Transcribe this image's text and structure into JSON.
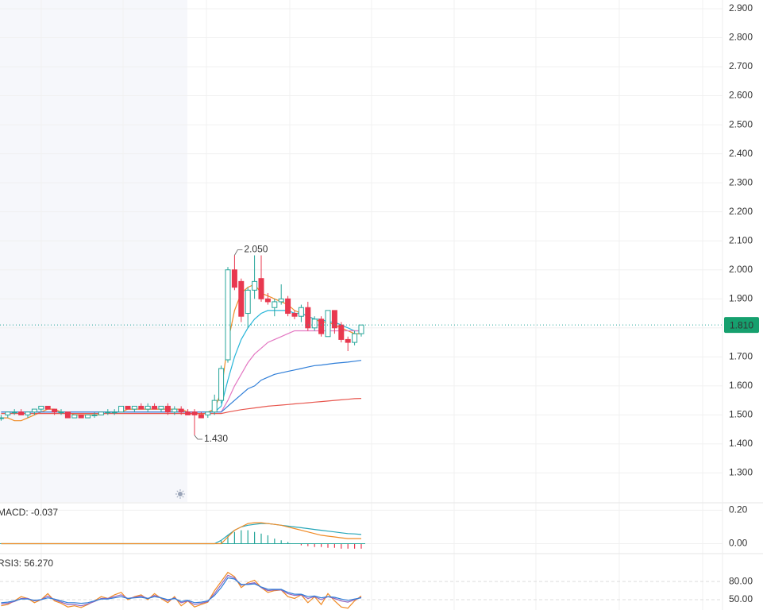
{
  "chart_data": [
    {
      "type": "candlestick",
      "up_color": "#26a69a",
      "down_color": "#e8384f",
      "open": [
        1.49,
        1.5,
        1.51,
        1.51,
        1.5,
        1.51,
        1.52,
        1.53,
        1.52,
        1.51,
        1.51,
        1.49,
        1.5,
        1.49,
        1.5,
        1.5,
        1.51,
        1.51,
        1.51,
        1.53,
        1.52,
        1.53,
        1.52,
        1.53,
        1.52,
        1.53,
        1.51,
        1.52,
        1.51,
        1.51,
        1.5,
        1.5,
        1.51,
        1.55,
        1.69,
        2.0,
        1.96,
        1.85,
        1.93,
        1.97,
        1.9,
        1.87,
        1.89,
        1.9,
        1.85,
        1.84,
        1.87,
        1.8,
        1.83,
        1.77,
        1.86,
        1.81,
        1.76,
        1.75,
        1.78
      ],
      "high": [
        1.5,
        1.51,
        1.52,
        1.52,
        1.51,
        1.52,
        1.53,
        1.53,
        1.52,
        1.52,
        1.51,
        1.5,
        1.5,
        1.5,
        1.51,
        1.51,
        1.52,
        1.52,
        1.53,
        1.53,
        1.53,
        1.54,
        1.54,
        1.54,
        1.53,
        1.54,
        1.53,
        1.53,
        1.52,
        1.52,
        1.51,
        1.51,
        1.57,
        1.67,
        2.01,
        2.05,
        1.97,
        1.94,
        2.05,
        2.05,
        1.92,
        1.9,
        1.95,
        1.91,
        1.86,
        1.88,
        1.89,
        1.84,
        1.84,
        1.86,
        1.86,
        1.82,
        1.77,
        1.79,
        1.81
      ],
      "low": [
        1.48,
        1.49,
        1.5,
        1.5,
        1.49,
        1.5,
        1.51,
        1.52,
        1.5,
        1.5,
        1.49,
        1.49,
        1.49,
        1.49,
        1.49,
        1.5,
        1.5,
        1.5,
        1.51,
        1.52,
        1.51,
        1.52,
        1.51,
        1.52,
        1.51,
        1.5,
        1.5,
        1.5,
        1.5,
        1.43,
        1.49,
        1.49,
        1.5,
        1.54,
        1.68,
        1.93,
        1.82,
        1.8,
        1.9,
        1.89,
        1.88,
        1.84,
        1.88,
        1.84,
        1.83,
        1.82,
        1.79,
        1.79,
        1.77,
        1.77,
        1.78,
        1.75,
        1.72,
        1.74,
        1.77
      ],
      "close": [
        1.49,
        1.51,
        1.51,
        1.5,
        1.51,
        1.52,
        1.53,
        1.52,
        1.51,
        1.51,
        1.49,
        1.5,
        1.49,
        1.5,
        1.5,
        1.51,
        1.51,
        1.51,
        1.53,
        1.52,
        1.53,
        1.52,
        1.53,
        1.52,
        1.53,
        1.51,
        1.52,
        1.51,
        1.5,
        1.5,
        1.49,
        1.51,
        1.55,
        1.66,
        2.0,
        1.94,
        1.84,
        1.93,
        1.96,
        1.9,
        1.89,
        1.89,
        1.9,
        1.85,
        1.84,
        1.87,
        1.8,
        1.83,
        1.78,
        1.86,
        1.8,
        1.76,
        1.75,
        1.78,
        1.81
      ],
      "lines": [
        {
          "color": "#f08a24",
          "values": [
            1.49,
            1.49,
            1.48,
            1.48,
            1.49,
            1.5,
            1.51,
            1.52,
            1.52,
            1.51,
            1.51,
            1.5,
            1.5,
            1.5,
            1.5,
            1.5,
            1.51,
            1.51,
            1.51,
            1.52,
            1.52,
            1.52,
            1.52,
            1.52,
            1.52,
            1.52,
            1.52,
            1.52,
            1.51,
            1.51,
            1.5,
            1.51,
            1.52,
            1.58,
            1.75,
            1.86,
            1.92,
            1.94,
            1.95,
            1.92,
            1.91,
            1.9,
            1.89,
            1.88,
            1.86,
            1.85,
            1.84,
            1.83,
            1.82,
            1.82,
            1.81,
            1.8,
            1.79,
            1.78,
            1.78
          ]
        },
        {
          "color": "#26b5d8",
          "values": [
            1.51,
            1.51,
            1.51,
            1.51,
            1.51,
            1.51,
            1.51,
            1.51,
            1.51,
            1.51,
            1.51,
            1.51,
            1.51,
            1.51,
            1.51,
            1.51,
            1.51,
            1.51,
            1.51,
            1.51,
            1.51,
            1.51,
            1.51,
            1.51,
            1.51,
            1.51,
            1.51,
            1.51,
            1.51,
            1.51,
            1.51,
            1.51,
            1.51,
            1.53,
            1.62,
            1.7,
            1.76,
            1.8,
            1.83,
            1.85,
            1.86,
            1.86,
            1.86,
            1.86,
            1.85,
            1.85,
            1.84,
            1.83,
            1.83,
            1.82,
            1.82,
            1.81,
            1.8,
            1.79,
            1.79
          ]
        },
        {
          "color": "#e377c2",
          "values": [
            1.51,
            1.51,
            1.51,
            1.51,
            1.51,
            1.51,
            1.51,
            1.51,
            1.51,
            1.51,
            1.51,
            1.51,
            1.51,
            1.51,
            1.51,
            1.51,
            1.51,
            1.51,
            1.51,
            1.51,
            1.51,
            1.51,
            1.51,
            1.51,
            1.51,
            1.51,
            1.51,
            1.51,
            1.51,
            1.51,
            1.51,
            1.51,
            1.51,
            1.51,
            1.55,
            1.6,
            1.64,
            1.68,
            1.71,
            1.73,
            1.75,
            1.76,
            1.77,
            1.78,
            1.79,
            1.79,
            1.79,
            1.79,
            1.79,
            1.79,
            1.79,
            1.79,
            1.79,
            1.79,
            1.79
          ]
        },
        {
          "color": "#2f7ed8",
          "values": [
            1.51,
            1.51,
            1.51,
            1.51,
            1.51,
            1.51,
            1.51,
            1.51,
            1.51,
            1.51,
            1.51,
            1.51,
            1.51,
            1.51,
            1.51,
            1.51,
            1.51,
            1.51,
            1.51,
            1.51,
            1.51,
            1.51,
            1.51,
            1.51,
            1.51,
            1.51,
            1.51,
            1.51,
            1.51,
            1.51,
            1.51,
            1.51,
            1.51,
            1.51,
            1.53,
            1.55,
            1.57,
            1.59,
            1.6,
            1.62,
            1.63,
            1.64,
            1.645,
            1.65,
            1.655,
            1.66,
            1.665,
            1.67,
            1.672,
            1.675,
            1.678,
            1.68,
            1.682,
            1.685,
            1.688
          ]
        },
        {
          "color": "#e8574f",
          "values": [
            1.505,
            1.505,
            1.505,
            1.505,
            1.505,
            1.505,
            1.505,
            1.505,
            1.505,
            1.505,
            1.505,
            1.505,
            1.505,
            1.505,
            1.505,
            1.505,
            1.505,
            1.505,
            1.505,
            1.505,
            1.505,
            1.505,
            1.505,
            1.505,
            1.505,
            1.505,
            1.505,
            1.505,
            1.505,
            1.505,
            1.505,
            1.505,
            1.505,
            1.505,
            1.51,
            1.514,
            1.518,
            1.521,
            1.524,
            1.527,
            1.53,
            1.532,
            1.534,
            1.536,
            1.538,
            1.54,
            1.542,
            1.544,
            1.546,
            1.548,
            1.55,
            1.552,
            1.554,
            1.556,
            1.557
          ]
        }
      ],
      "annotations": [
        {
          "value": 2.05,
          "label": "2.050"
        },
        {
          "value": 1.43,
          "label": "1.430"
        }
      ],
      "last_price": {
        "value": 1.81,
        "label": "1.810"
      },
      "ylim": [
        1.2,
        2.93
      ],
      "yticks": [
        {
          "value": 1.3,
          "label": "1.300"
        },
        {
          "value": 1.4,
          "label": "1.400"
        },
        {
          "value": 1.5,
          "label": "1.500"
        },
        {
          "value": 1.6,
          "label": "1.600"
        },
        {
          "value": 1.7,
          "label": "1.700"
        },
        {
          "value": 1.8,
          "label": "1.800"
        },
        {
          "value": 1.9,
          "label": "1.900"
        },
        {
          "value": 2.0,
          "label": "2.000"
        },
        {
          "value": 2.1,
          "label": "2.100"
        },
        {
          "value": 2.2,
          "label": "2.200"
        },
        {
          "value": 2.3,
          "label": "2.300"
        },
        {
          "value": 2.4,
          "label": "2.400"
        },
        {
          "value": 2.5,
          "label": "2.500"
        },
        {
          "value": 2.6,
          "label": "2.600"
        },
        {
          "value": 2.7,
          "label": "2.700"
        },
        {
          "value": 2.8,
          "label": "2.800"
        },
        {
          "value": 2.9,
          "label": "2.900"
        }
      ],
      "grid": true
    },
    {
      "type": "macd",
      "title": "MACD: -0.037",
      "title_color": "#d354c4",
      "up_color": "#26a69a",
      "down_color": "#e8384f",
      "histogram": [
        0,
        0,
        0,
        0,
        0,
        0,
        0,
        0,
        0,
        0,
        0,
        0,
        0,
        0,
        0,
        0,
        0,
        0,
        0,
        0,
        0,
        0,
        0,
        0,
        0,
        0,
        0,
        0,
        0,
        0,
        0,
        0,
        0,
        0.02,
        0.05,
        0.07,
        0.08,
        0.08,
        0.07,
        0.06,
        0.05,
        0.03,
        0.02,
        0.01,
        0,
        -0.01,
        -0.015,
        -0.02,
        -0.02,
        -0.025,
        -0.025,
        -0.03,
        -0.03,
        -0.03,
        -0.03
      ],
      "lines": [
        {
          "color": "#26a6b8",
          "values": [
            0,
            0,
            0,
            0,
            0,
            0,
            0,
            0,
            0,
            0,
            0,
            0,
            0,
            0,
            0,
            0,
            0,
            0,
            0,
            0,
            0,
            0,
            0,
            0,
            0,
            0,
            0,
            0,
            0,
            0,
            0,
            0,
            0,
            0.02,
            0.05,
            0.08,
            0.1,
            0.11,
            0.115,
            0.12,
            0.12,
            0.115,
            0.11,
            0.105,
            0.1,
            0.095,
            0.09,
            0.085,
            0.08,
            0.075,
            0.07,
            0.065,
            0.06,
            0.058,
            0.055
          ]
        },
        {
          "color": "#f08a24",
          "values": [
            0,
            0,
            0,
            0,
            0,
            0,
            0,
            0,
            0,
            0,
            0,
            0,
            0,
            0,
            0,
            0,
            0,
            0,
            0,
            0,
            0,
            0,
            0,
            0,
            0,
            0,
            0,
            0,
            0,
            0,
            0,
            0,
            0,
            0,
            0.04,
            0.08,
            0.1,
            0.12,
            0.125,
            0.125,
            0.12,
            0.115,
            0.11,
            0.1,
            0.09,
            0.08,
            0.07,
            0.06,
            0.05,
            0.045,
            0.04,
            0.035,
            0.03,
            0.03,
            0.03
          ]
        }
      ],
      "ylim": [
        -0.05,
        0.23
      ],
      "yticks": [
        {
          "value": 0,
          "label": "0.00"
        },
        {
          "value": 0.2,
          "label": "0.20"
        }
      ]
    },
    {
      "type": "line",
      "title": "RSI3: 56.270",
      "title_color": "#d354c4",
      "lines": [
        {
          "color": "#f08a24",
          "values": [
            40,
            42,
            48,
            55,
            52,
            45,
            50,
            60,
            48,
            44,
            38,
            40,
            37,
            42,
            48,
            55,
            52,
            58,
            62,
            50,
            55,
            58,
            50,
            60,
            52,
            45,
            55,
            40,
            48,
            38,
            42,
            46,
            65,
            80,
            95,
            88,
            70,
            78,
            82,
            70,
            62,
            65,
            66,
            55,
            52,
            58,
            45,
            55,
            42,
            60,
            48,
            38,
            36,
            48,
            56
          ]
        },
        {
          "color": "#9467bd",
          "values": [
            43,
            44,
            47,
            52,
            52,
            48,
            50,
            56,
            50,
            46,
            42,
            42,
            40,
            43,
            47,
            52,
            52,
            55,
            58,
            52,
            54,
            56,
            52,
            57,
            53,
            48,
            53,
            45,
            48,
            42,
            44,
            47,
            60,
            75,
            90,
            86,
            74,
            76,
            78,
            70,
            65,
            66,
            66,
            60,
            57,
            58,
            52,
            55,
            50,
            55,
            52,
            48,
            46,
            50,
            54
          ]
        },
        {
          "color": "#2f7ed8",
          "values": [
            45,
            46,
            48,
            51,
            51,
            49,
            50,
            53,
            51,
            48,
            45,
            45,
            44,
            45,
            48,
            51,
            51,
            53,
            55,
            52,
            53,
            54,
            52,
            55,
            53,
            50,
            52,
            47,
            49,
            45,
            46,
            48,
            57,
            70,
            86,
            84,
            75,
            75,
            76,
            71,
            67,
            67,
            67,
            62,
            59,
            59,
            55,
            56,
            53,
            55,
            54,
            51,
            49,
            51,
            53
          ]
        }
      ],
      "ylim": [
        33,
        122
      ],
      "yticks": [
        {
          "value": 50,
          "label": "50.00"
        },
        {
          "value": 80,
          "label": "80.00"
        }
      ],
      "grid": "dashed"
    }
  ]
}
